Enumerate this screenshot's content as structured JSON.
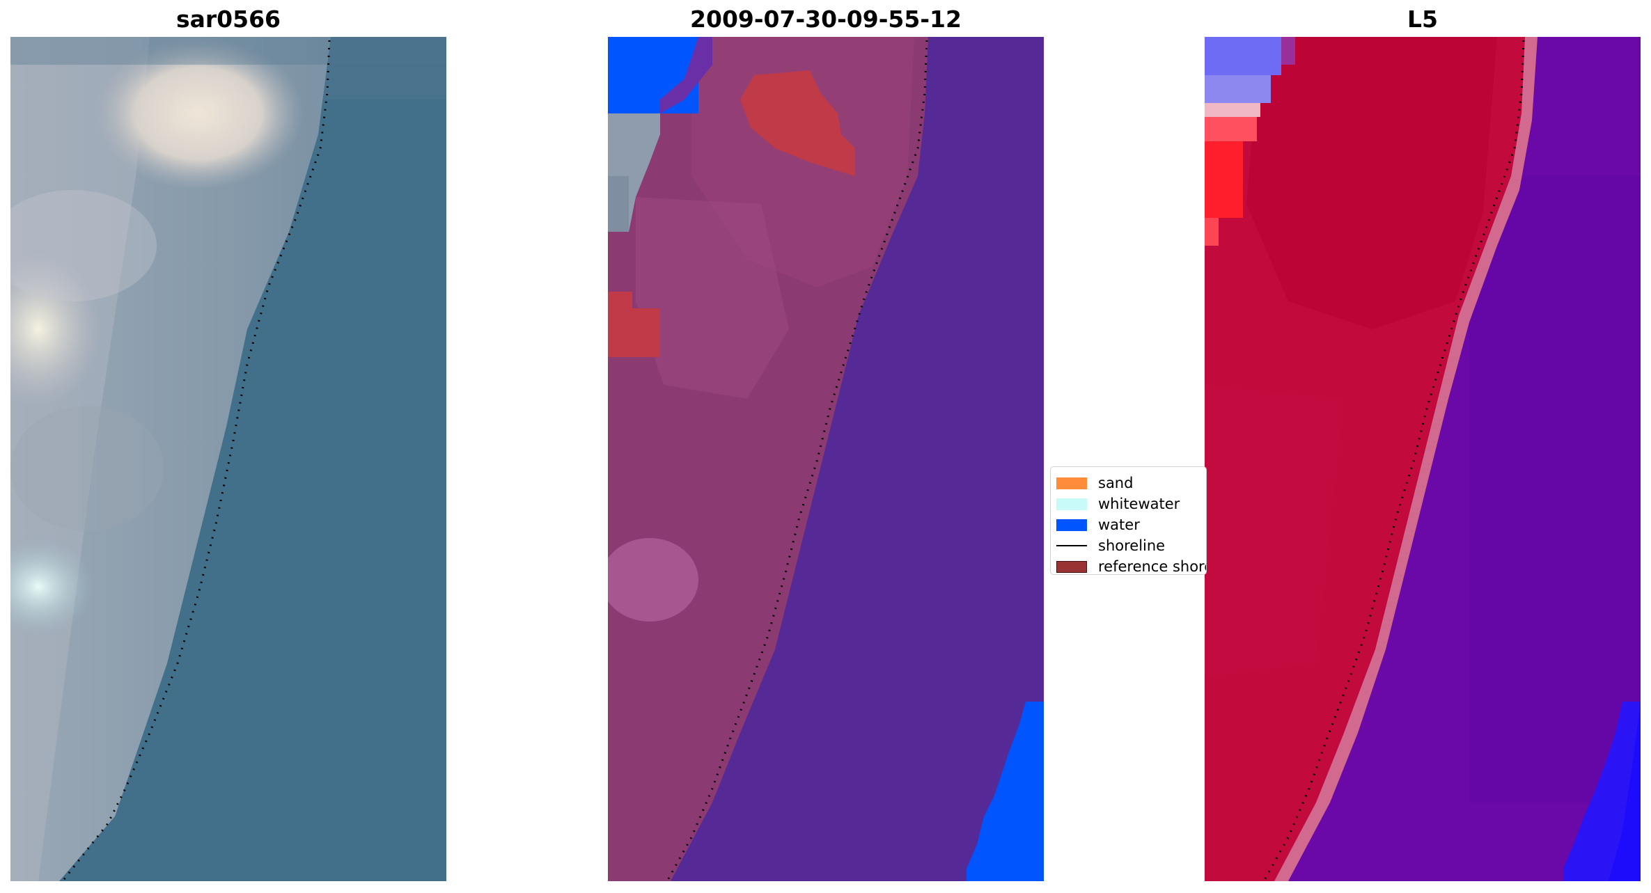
{
  "panels": [
    {
      "title": "sar0566"
    },
    {
      "title": "2009-07-30-09-55-12"
    },
    {
      "title": "L5"
    }
  ],
  "legend": {
    "items": [
      {
        "label": "sand",
        "color": "#ff8c3a",
        "kind": "patch"
      },
      {
        "label": "whitewater",
        "color": "#c8fafa",
        "kind": "patch"
      },
      {
        "label": "water",
        "color": "#0055ff",
        "kind": "patch"
      },
      {
        "label": "shoreline",
        "color": "#000000",
        "kind": "line"
      },
      {
        "label": "reference shoreline",
        "color": "#993333",
        "kind": "patch"
      }
    ]
  },
  "colors": {
    "rgb_water": "#406f88",
    "rgb_land": "#8f9fae",
    "class_water_tint": "#552a96",
    "class_land_tint": "#8c3a74",
    "mndwi_positive": "#6a08a8",
    "mndwi_negative": "#c2063a"
  }
}
